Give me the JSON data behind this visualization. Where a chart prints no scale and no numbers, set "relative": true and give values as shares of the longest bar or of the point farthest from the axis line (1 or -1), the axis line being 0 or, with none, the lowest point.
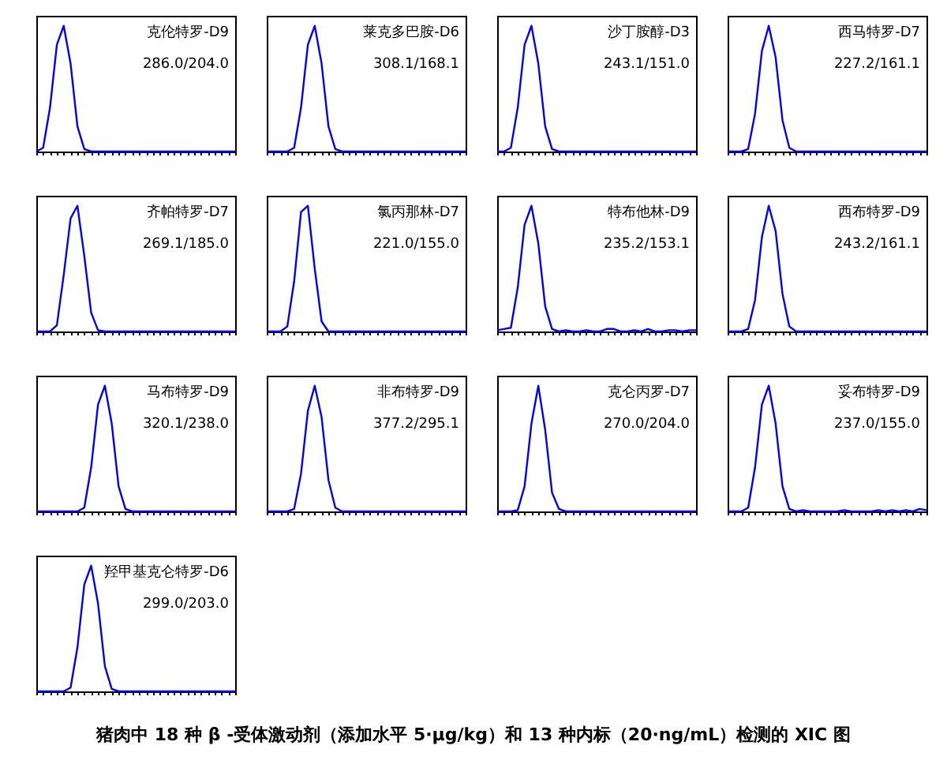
{
  "chart_data": [
    {
      "type": "line",
      "title": "克伦特罗-D9",
      "subtitle": "286.0/204.0",
      "relative": true,
      "color": "#0000ff",
      "categories": [
        null,
        null,
        null,
        null,
        null,
        null,
        null,
        null,
        null,
        null,
        null,
        null,
        null,
        null,
        null,
        null,
        null,
        null,
        null,
        null,
        null,
        null,
        null,
        null,
        null,
        null,
        null,
        null,
        null,
        null
      ],
      "values": [
        0,
        0.03,
        0.35,
        0.85,
        1,
        0.7,
        0.2,
        0.02,
        0,
        0,
        0,
        0,
        0,
        0,
        0,
        0,
        0,
        0,
        0,
        0,
        0,
        0,
        0,
        0,
        0,
        0,
        0,
        0,
        0,
        0
      ]
    },
    {
      "type": "line",
      "title": "莱克多巴胺-D6",
      "subtitle": "308.1/168.1",
      "relative": true,
      "color": "#0000ff",
      "categories": [
        null,
        null,
        null,
        null,
        null,
        null,
        null,
        null,
        null,
        null,
        null,
        null,
        null,
        null,
        null,
        null,
        null,
        null,
        null,
        null,
        null,
        null,
        null,
        null,
        null,
        null,
        null,
        null,
        null,
        null
      ],
      "values": [
        0,
        0,
        0,
        0,
        0.03,
        0.35,
        0.85,
        1,
        0.7,
        0.2,
        0.02,
        0,
        0,
        0,
        0,
        0,
        0,
        0,
        0,
        0,
        0,
        0,
        0,
        0,
        0,
        0,
        0,
        0,
        0,
        0
      ]
    },
    {
      "type": "line",
      "title": "沙丁胺醇-D3",
      "subtitle": "243.1/151.0",
      "relative": true,
      "color": "#0000ff",
      "categories": [
        null,
        null,
        null,
        null,
        null,
        null,
        null,
        null,
        null,
        null,
        null,
        null,
        null,
        null,
        null,
        null,
        null,
        null,
        null,
        null,
        null,
        null,
        null,
        null,
        null,
        null,
        null,
        null,
        null,
        null
      ],
      "values": [
        0,
        0,
        0.03,
        0.35,
        0.85,
        1,
        0.7,
        0.2,
        0.02,
        0,
        0,
        0,
        0,
        0,
        0,
        0,
        0,
        0,
        0,
        0,
        0,
        0,
        0,
        0,
        0,
        0,
        0,
        0,
        0,
        0
      ]
    },
    {
      "type": "line",
      "title": "西马特罗-D7",
      "subtitle": "227.2/161.1",
      "relative": true,
      "color": "#0000ff",
      "categories": [
        null,
        null,
        null,
        null,
        null,
        null,
        null,
        null,
        null,
        null,
        null,
        null,
        null,
        null,
        null,
        null,
        null,
        null,
        null,
        null,
        null,
        null,
        null,
        null,
        null,
        null,
        null,
        null,
        null,
        null
      ],
      "values": [
        0,
        0,
        0,
        0.02,
        0.3,
        0.8,
        1,
        0.75,
        0.25,
        0.03,
        0,
        0,
        0,
        0,
        0,
        0,
        0,
        0,
        0,
        0,
        0,
        0,
        0,
        0,
        0,
        0,
        0,
        0,
        0,
        0
      ]
    },
    {
      "type": "line",
      "title": "齐帕特罗-D7",
      "subtitle": "269.1/185.0",
      "relative": true,
      "color": "#0000ff",
      "categories": [
        null,
        null,
        null,
        null,
        null,
        null,
        null,
        null,
        null,
        null,
        null,
        null,
        null,
        null,
        null,
        null,
        null,
        null,
        null,
        null,
        null,
        null,
        null,
        null,
        null,
        null,
        null,
        null,
        null,
        null
      ],
      "values": [
        0,
        0,
        0,
        0.05,
        0.45,
        0.9,
        1,
        0.6,
        0.15,
        0.01,
        0,
        0,
        0,
        0,
        0,
        0,
        0,
        0,
        0,
        0,
        0,
        0,
        0,
        0,
        0,
        0,
        0,
        0,
        0,
        0
      ]
    },
    {
      "type": "line",
      "title": "氯丙那林-D7",
      "subtitle": "221.0/155.0",
      "relative": true,
      "color": "#0000ff",
      "categories": [
        null,
        null,
        null,
        null,
        null,
        null,
        null,
        null,
        null,
        null,
        null,
        null,
        null,
        null,
        null,
        null,
        null,
        null,
        null,
        null,
        null,
        null,
        null,
        null,
        null,
        null,
        null,
        null,
        null,
        null
      ],
      "values": [
        0,
        0,
        0,
        0.04,
        0.4,
        0.95,
        1,
        0.5,
        0.08,
        0,
        0,
        0,
        0,
        0,
        0,
        0,
        0,
        0,
        0,
        0,
        0,
        0,
        0,
        0,
        0,
        0,
        0,
        0,
        0,
        0
      ]
    },
    {
      "type": "line",
      "title": "特布他林-D9",
      "subtitle": "235.2/153.1",
      "relative": true,
      "color": "#0000ff",
      "categories": [
        null,
        null,
        null,
        null,
        null,
        null,
        null,
        null,
        null,
        null,
        null,
        null,
        null,
        null,
        null,
        null,
        null,
        null,
        null,
        null,
        null,
        null,
        null,
        null,
        null,
        null,
        null,
        null,
        null,
        null
      ],
      "values": [
        0.01,
        0.02,
        0.03,
        0.35,
        0.85,
        1,
        0.7,
        0.2,
        0.02,
        0,
        0.01,
        0,
        0,
        0.01,
        0,
        0,
        0.02,
        0.02,
        0,
        0,
        0.01,
        0,
        0.02,
        0,
        0,
        0.01,
        0.01,
        0,
        0.01,
        0.01
      ]
    },
    {
      "type": "line",
      "title": "西布特罗-D9",
      "subtitle": "243.2/161.1",
      "relative": true,
      "color": "#0000ff",
      "categories": [
        null,
        null,
        null,
        null,
        null,
        null,
        null,
        null,
        null,
        null,
        null,
        null,
        null,
        null,
        null,
        null,
        null,
        null,
        null,
        null,
        null,
        null,
        null,
        null,
        null,
        null,
        null,
        null,
        null,
        null
      ],
      "values": [
        0,
        0,
        0,
        0.02,
        0.25,
        0.75,
        1,
        0.8,
        0.3,
        0.04,
        0,
        0,
        0,
        0,
        0,
        0,
        0,
        0,
        0,
        0,
        0,
        0,
        0,
        0,
        0,
        0,
        0,
        0,
        0,
        0
      ]
    },
    {
      "type": "line",
      "title": "马布特罗-D9",
      "subtitle": "320.1/238.0",
      "relative": true,
      "color": "#0000ff",
      "categories": [
        null,
        null,
        null,
        null,
        null,
        null,
        null,
        null,
        null,
        null,
        null,
        null,
        null,
        null,
        null,
        null,
        null,
        null,
        null,
        null,
        null,
        null,
        null,
        null,
        null,
        null,
        null,
        null,
        null,
        null
      ],
      "values": [
        0,
        0,
        0,
        0,
        0,
        0,
        0,
        0.03,
        0.35,
        0.85,
        1,
        0.7,
        0.2,
        0.02,
        0,
        0,
        0,
        0,
        0,
        0,
        0,
        0,
        0,
        0,
        0,
        0,
        0,
        0,
        0,
        0
      ]
    },
    {
      "type": "line",
      "title": "非布特罗-D9",
      "subtitle": "377.2/295.1",
      "relative": true,
      "color": "#0000ff",
      "categories": [
        null,
        null,
        null,
        null,
        null,
        null,
        null,
        null,
        null,
        null,
        null,
        null,
        null,
        null,
        null,
        null,
        null,
        null,
        null,
        null,
        null,
        null,
        null,
        null,
        null,
        null,
        null,
        null,
        null,
        null
      ],
      "values": [
        0,
        0,
        0,
        0,
        0.02,
        0.3,
        0.8,
        1,
        0.75,
        0.25,
        0.03,
        0,
        0,
        0,
        0,
        0,
        0,
        0,
        0,
        0,
        0,
        0,
        0,
        0,
        0,
        0,
        0,
        0,
        0,
        0
      ]
    },
    {
      "type": "line",
      "title": "克仑丙罗-D7",
      "subtitle": "270.0/204.0",
      "relative": true,
      "color": "#0000ff",
      "categories": [
        null,
        null,
        null,
        null,
        null,
        null,
        null,
        null,
        null,
        null,
        null,
        null,
        null,
        null,
        null,
        null,
        null,
        null,
        null,
        null,
        null,
        null,
        null,
        null,
        null,
        null,
        null,
        null,
        null,
        null
      ],
      "values": [
        0,
        0,
        0,
        0.01,
        0.2,
        0.7,
        1,
        0.65,
        0.15,
        0.02,
        0,
        0,
        0,
        0,
        0,
        0,
        0,
        0,
        0,
        0,
        0,
        0,
        0,
        0,
        0,
        0,
        0,
        0,
        0,
        0
      ]
    },
    {
      "type": "line",
      "title": "妥布特罗-D9",
      "subtitle": "237.0/155.0",
      "relative": true,
      "color": "#0000ff",
      "categories": [
        null,
        null,
        null,
        null,
        null,
        null,
        null,
        null,
        null,
        null,
        null,
        null,
        null,
        null,
        null,
        null,
        null,
        null,
        null,
        null,
        null,
        null,
        null,
        null,
        null,
        null,
        null,
        null,
        null,
        null
      ],
      "values": [
        0,
        0,
        0,
        0.03,
        0.35,
        0.85,
        1,
        0.7,
        0.2,
        0.02,
        0,
        0.01,
        0,
        0,
        0,
        0,
        0,
        0.01,
        0,
        0,
        0,
        0,
        0.01,
        0,
        0.01,
        0,
        0.01,
        0,
        0.02,
        0.01
      ]
    },
    {
      "type": "line",
      "title": "羟甲基克仑特罗-D6",
      "subtitle": "299.0/203.0",
      "relative": true,
      "color": "#0000ff",
      "categories": [
        null,
        null,
        null,
        null,
        null,
        null,
        null,
        null,
        null,
        null,
        null,
        null,
        null,
        null,
        null,
        null,
        null,
        null,
        null,
        null,
        null,
        null,
        null,
        null,
        null,
        null,
        null,
        null,
        null,
        null
      ],
      "values": [
        0,
        0,
        0,
        0,
        0,
        0.03,
        0.35,
        0.85,
        1,
        0.7,
        0.2,
        0.02,
        0,
        0,
        0,
        0,
        0,
        0,
        0,
        0,
        0,
        0,
        0,
        0,
        0,
        0,
        0,
        0,
        0,
        0
      ],
      "annotations": [
        "猪肉中 18 种 β -受体激动剂（添加水平 5·μg/kg）和 13 种内标（20·ng/mL）检测的 XIC 图"
      ]
    }
  ]
}
